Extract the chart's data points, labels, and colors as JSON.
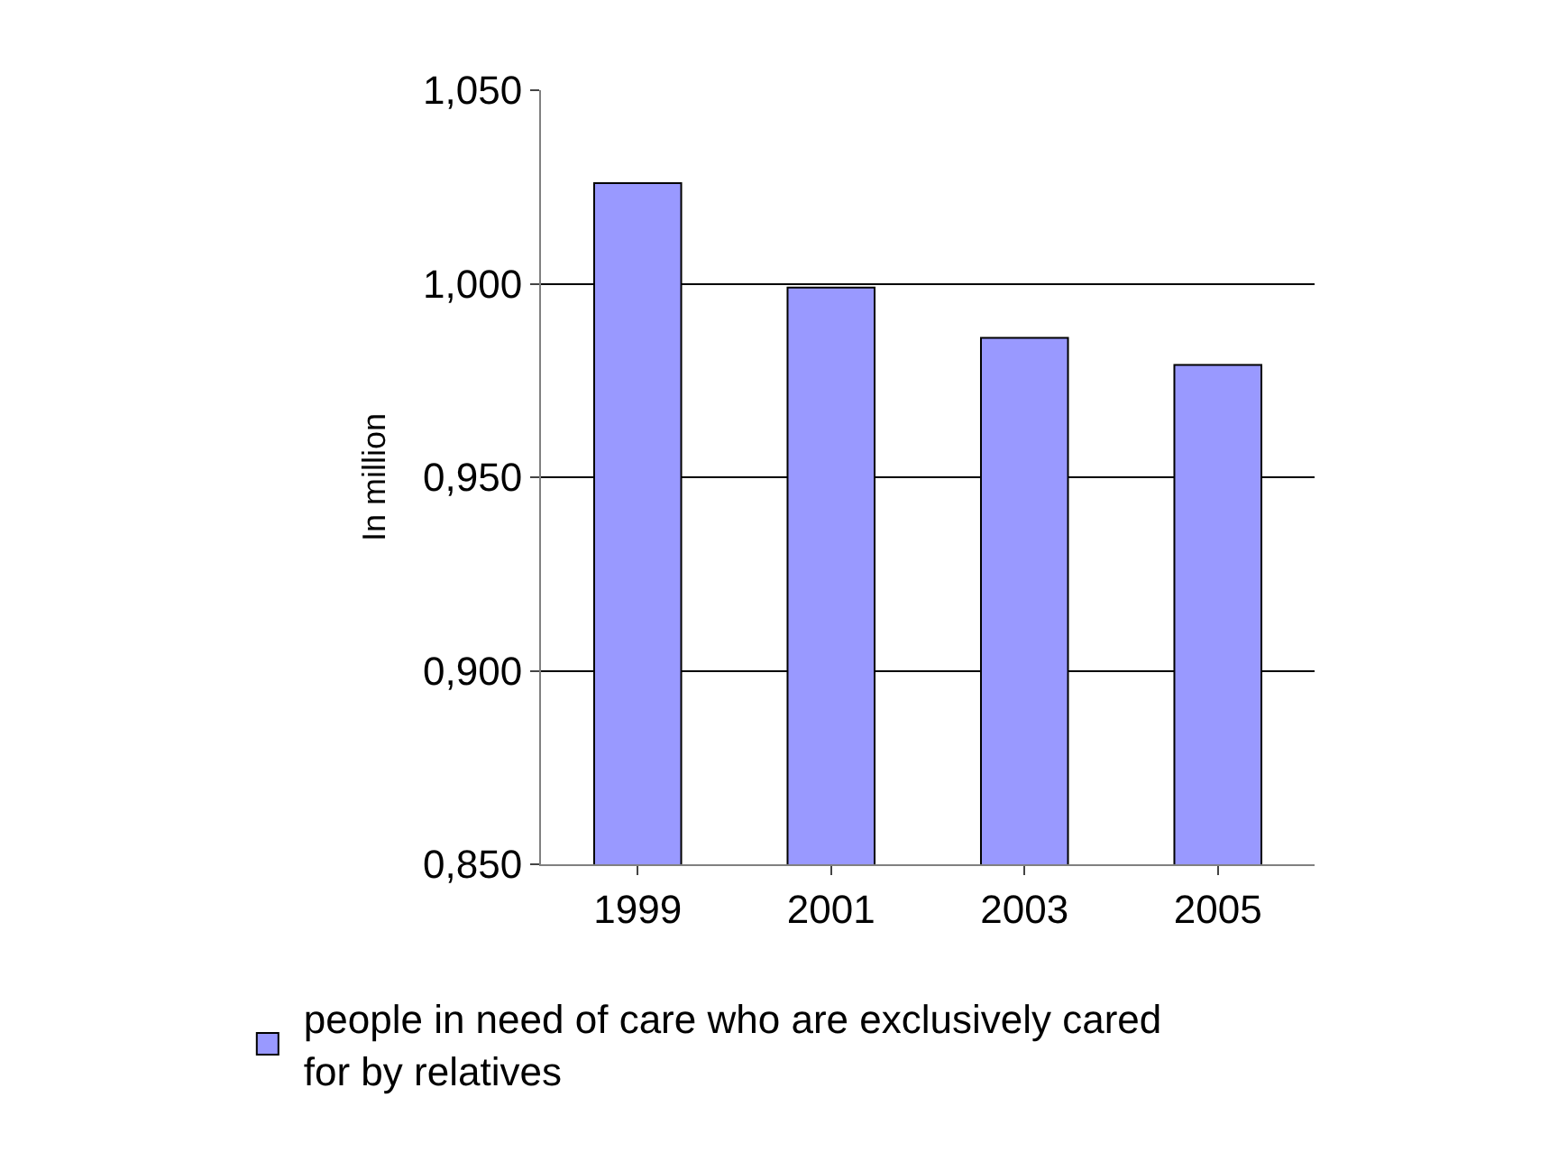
{
  "chart_data": {
    "type": "bar",
    "ylabel": "In million",
    "categories": [
      "1999",
      "2001",
      "2003",
      "2005"
    ],
    "series": [
      {
        "name": "people in need of care who are exclusively cared for by relatives",
        "color": "#9999ff",
        "values": [
          1.026,
          0.999,
          0.986,
          0.979
        ]
      }
    ],
    "ylim": [
      0.85,
      1.05
    ],
    "yticks": [
      {
        "value": 0.85,
        "label": "0,850"
      },
      {
        "value": 0.9,
        "label": "0,900"
      },
      {
        "value": 0.95,
        "label": "0,950"
      },
      {
        "value": 1.0,
        "label": "1,000"
      },
      {
        "value": 1.05,
        "label": "1,050"
      }
    ],
    "grid": "y",
    "legend": "bottom"
  }
}
